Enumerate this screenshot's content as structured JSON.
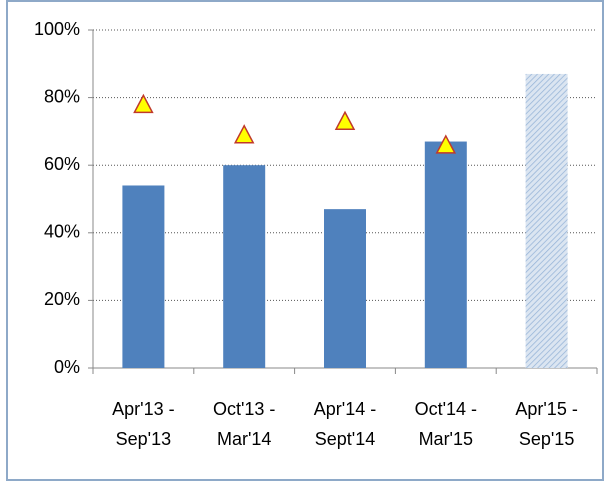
{
  "chart_data": {
    "type": "bar",
    "categories": [
      [
        "Apr'13  -",
        "Sep'13"
      ],
      [
        "Oct'13 -",
        "Mar'14"
      ],
      [
        "Apr'14 -",
        "Sept'14"
      ],
      [
        "Oct'14  -",
        "Mar'15"
      ],
      [
        "Apr'15 -",
        "Sep'15"
      ]
    ],
    "series": [
      {
        "type": "bar",
        "color": "#4f81bd",
        "values": [
          54,
          60,
          47,
          67,
          87
        ],
        "hatched": [
          false,
          false,
          false,
          false,
          true
        ]
      },
      {
        "type": "scatter",
        "color": "#ffff00",
        "edge_color": "#c0392b",
        "marker": "triangle",
        "values": [
          78,
          69,
          73,
          66,
          null
        ]
      }
    ],
    "ylim": [
      0,
      100
    ],
    "yticks": [
      {
        "value": 0,
        "label": "0%"
      },
      {
        "value": 20,
        "label": "20%"
      },
      {
        "value": 40,
        "label": "40%"
      },
      {
        "value": 60,
        "label": "60%"
      },
      {
        "value": 80,
        "label": "80%"
      },
      {
        "value": 100,
        "label": "100%"
      }
    ],
    "grid": true
  }
}
